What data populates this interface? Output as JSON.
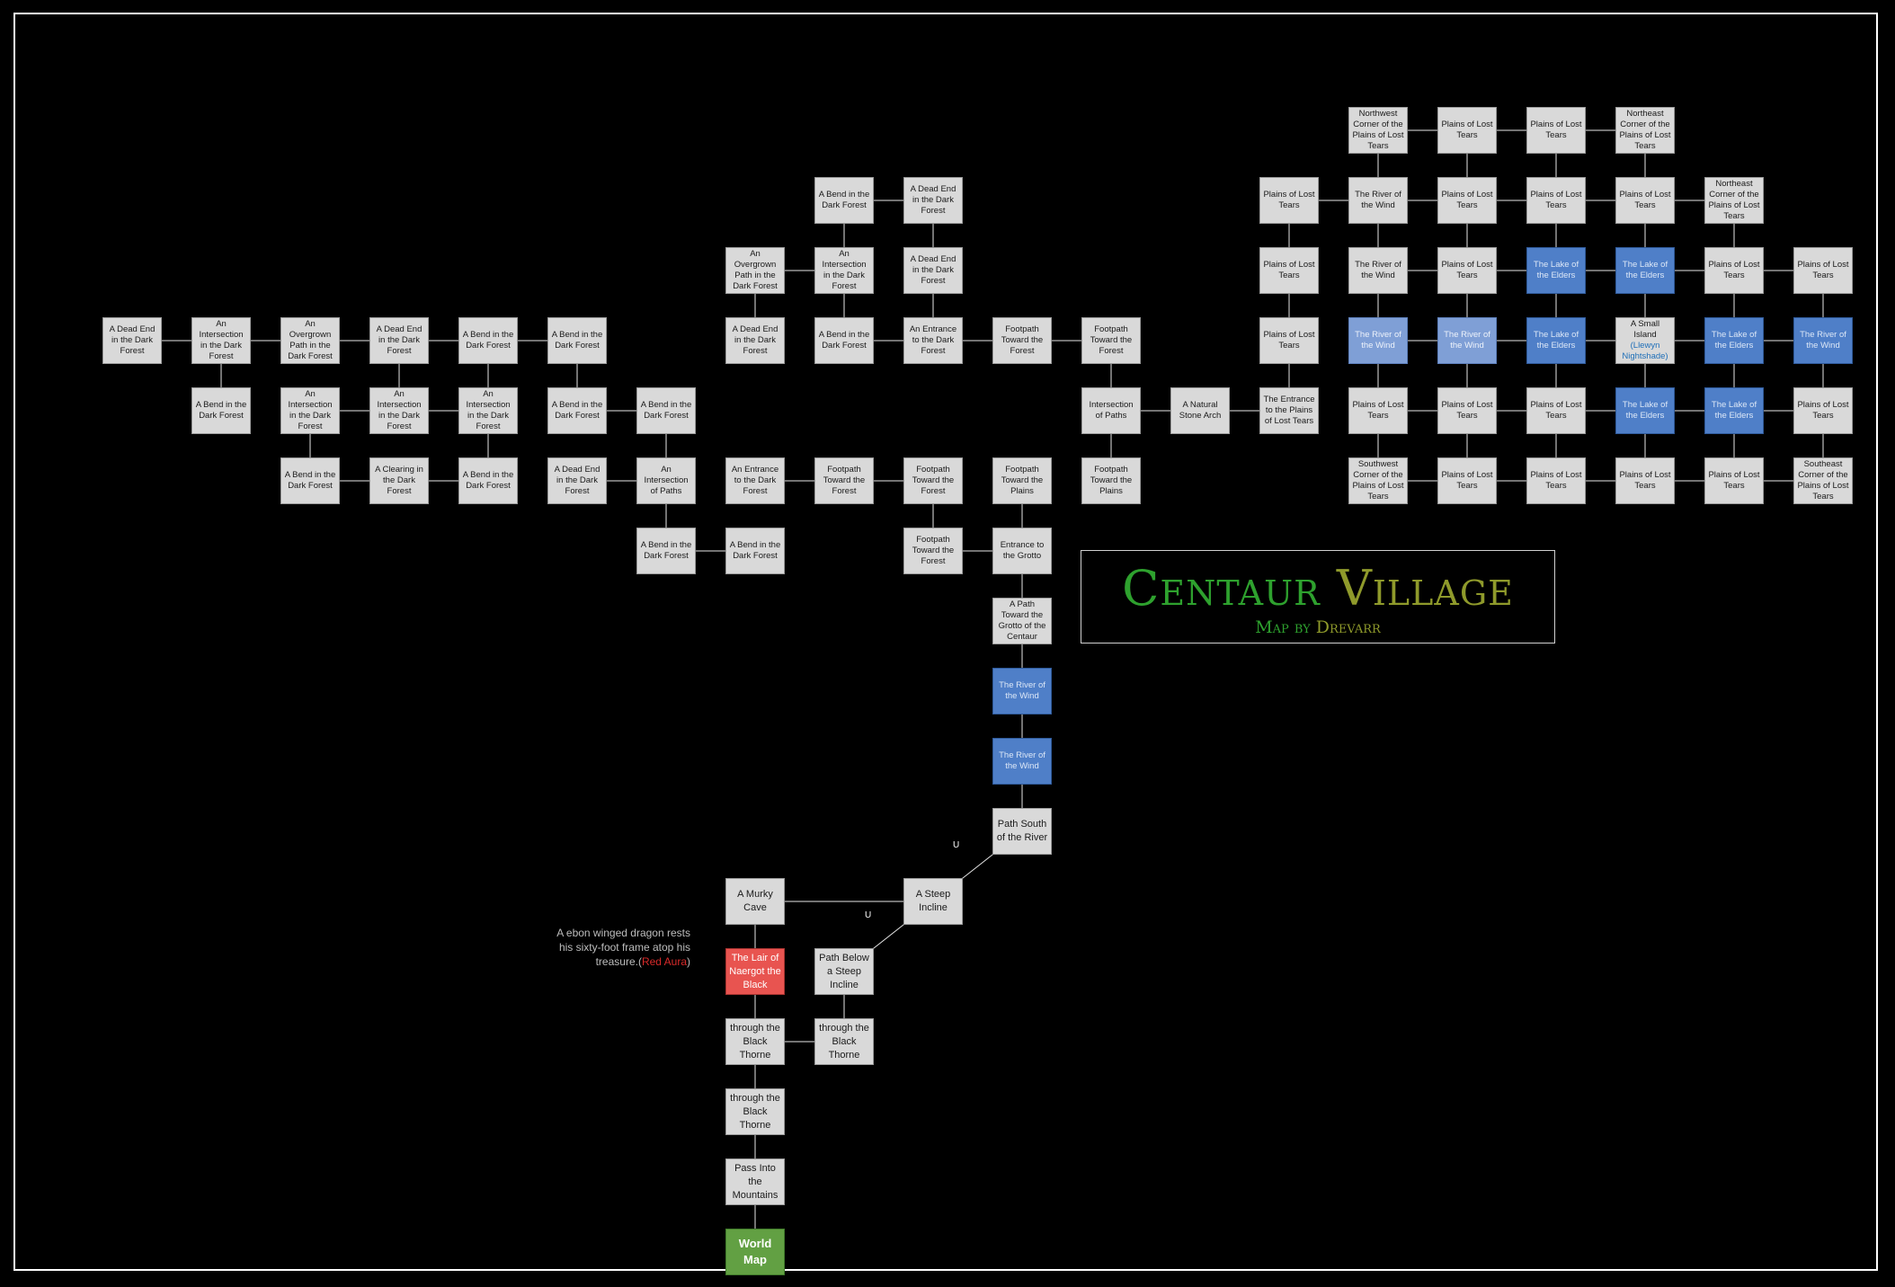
{
  "title": {
    "main_word1": "Centaur",
    "main_word2": "Village",
    "sub_word1": "Map by",
    "sub_word2": "Drevarr"
  },
  "note": {
    "text": "A ebon winged dragon rests his sixty-foot frame atop his treasure.",
    "open": "(",
    "aura": "Red Aura",
    "close": ")"
  },
  "up_label": "U",
  "colors": {
    "room": "#d9d9d9",
    "water": "#4f7fc8",
    "water_light": "#7f9fd6",
    "lair": "#e85450",
    "exit": "#62a043",
    "title_green": "#2ea12e",
    "title_olive": "#8f9a2b"
  },
  "rooms": [
    {
      "id": "A1",
      "label": "A Dead End in the Dark Forest"
    },
    {
      "id": "A2",
      "label": "An Intersection in the Dark Forest"
    },
    {
      "id": "A3",
      "label": "An Overgrown Path in the Dark Forest"
    },
    {
      "id": "A4",
      "label": "A Dead End in the Dark Forest"
    },
    {
      "id": "A5",
      "label": "A Bend in the Dark Forest"
    },
    {
      "id": "A6",
      "label": "A Bend in the Dark Forest"
    },
    {
      "id": "B2",
      "label": "A Bend in the Dark Forest"
    },
    {
      "id": "B3",
      "label": "An Intersection in the Dark Forest"
    },
    {
      "id": "B4",
      "label": "An Intersection in the Dark Forest"
    },
    {
      "id": "B5",
      "label": "An Intersection in the Dark Forest"
    },
    {
      "id": "B6",
      "label": "A Bend in the Dark Forest"
    },
    {
      "id": "B7",
      "label": "A Bend in the Dark Forest"
    },
    {
      "id": "C3",
      "label": "A Bend in the Dark Forest"
    },
    {
      "id": "C4",
      "label": "A Clearing in the Dark Forest"
    },
    {
      "id": "C5",
      "label": "A Bend in the Dark Forest"
    },
    {
      "id": "C6",
      "label": "A Dead End in the Dark Forest"
    },
    {
      "id": "C7",
      "label": "An Intersection of Paths"
    },
    {
      "id": "C8",
      "label": "An Entrance to the Dark Forest"
    },
    {
      "id": "C9",
      "label": "Footpath Toward the Forest"
    },
    {
      "id": "C10",
      "label": "Footpath Toward the Forest"
    },
    {
      "id": "C11",
      "label": "Footpath Toward the Plains"
    },
    {
      "id": "C12",
      "label": "Footpath Toward the Plains"
    },
    {
      "id": "D7",
      "label": "A Bend in the Dark Forest"
    },
    {
      "id": "D8",
      "label": "A Bend in the Dark Forest"
    },
    {
      "id": "D10",
      "label": "Footpath Toward the Forest"
    },
    {
      "id": "D11",
      "label": "Entrance to the Grotto"
    },
    {
      "id": "F1",
      "label": "A Bend in the Dark Forest"
    },
    {
      "id": "F2",
      "label": "A Dead End in the Dark Forest"
    },
    {
      "id": "F3",
      "label": "An Overgrown Path in the Dark Forest"
    },
    {
      "id": "F4",
      "label": "An Intersection in the Dark Forest"
    },
    {
      "id": "F5",
      "label": "A Dead End in the Dark Forest"
    },
    {
      "id": "F6",
      "label": "A Dead End in the Dark Forest"
    },
    {
      "id": "F7",
      "label": "A Bend in the Dark Forest"
    },
    {
      "id": "F8",
      "label": "An Entrance to the Dark Forest"
    },
    {
      "id": "F9",
      "label": "Footpath Toward the Forest"
    },
    {
      "id": "F10",
      "label": "Footpath Toward the Forest"
    },
    {
      "id": "F11",
      "label": "Intersection of Paths"
    },
    {
      "id": "F12",
      "label": "A Natural Stone Arch"
    },
    {
      "id": "F13",
      "label": "The Entrance to the Plains of Lost Tears"
    },
    {
      "id": "P1",
      "label": "Northwest Corner of the Plains of Lost Tears"
    },
    {
      "id": "P2",
      "label": "Plains of Lost Tears"
    },
    {
      "id": "P3",
      "label": "Plains of Lost Tears"
    },
    {
      "id": "P4",
      "label": "Northeast Corner of the Plains of Lost Tears"
    },
    {
      "id": "P5",
      "label": "Plains of Lost Tears"
    },
    {
      "id": "P6",
      "label": "The River of the Wind"
    },
    {
      "id": "P7",
      "label": "Plains of Lost Tears"
    },
    {
      "id": "P8",
      "label": "Plains of Lost Tears"
    },
    {
      "id": "P9",
      "label": "Plains of Lost Tears"
    },
    {
      "id": "P10",
      "label": "Northeast Corner of the Plains of Lost Tears"
    },
    {
      "id": "P11",
      "label": "Plains of Lost Tears"
    },
    {
      "id": "P12",
      "label": "The River of the Wind"
    },
    {
      "id": "P13",
      "label": "Plains of Lost Tears"
    },
    {
      "id": "P14",
      "label": "The Lake of the Elders",
      "kind": "water"
    },
    {
      "id": "P15",
      "label": "The Lake of the Elders",
      "kind": "water"
    },
    {
      "id": "P16",
      "label": "Plains of Lost Tears"
    },
    {
      "id": "P17",
      "label": "Plains of Lost Tears"
    },
    {
      "id": "P18",
      "label": "Plains of Lost Tears"
    },
    {
      "id": "P19",
      "label": "The River of the Wind",
      "kind": "water-light"
    },
    {
      "id": "P20",
      "label": "The River of the Wind",
      "kind": "water-light"
    },
    {
      "id": "P21",
      "label": "The Lake of the Elders",
      "kind": "water"
    },
    {
      "id": "P22",
      "label": "A Small Island",
      "sub": "(Llewyn Nightshade)"
    },
    {
      "id": "P23",
      "label": "The Lake of the Elders",
      "kind": "water"
    },
    {
      "id": "P24",
      "label": "The River of the Wind",
      "kind": "water"
    },
    {
      "id": "P25",
      "label": "Plains of Lost Tears"
    },
    {
      "id": "P26",
      "label": "Plains of Lost Tears"
    },
    {
      "id": "P27",
      "label": "Plains of Lost Tears"
    },
    {
      "id": "P28",
      "label": "The Lake of the Elders",
      "kind": "water"
    },
    {
      "id": "P29",
      "label": "The Lake of the Elders",
      "kind": "water"
    },
    {
      "id": "P30",
      "label": "Plains of Lost Tears"
    },
    {
      "id": "P31",
      "label": "Southwest Corner of the Plains of Lost Tears"
    },
    {
      "id": "P32",
      "label": "Plains of Lost Tears"
    },
    {
      "id": "P33",
      "label": "Plains of Lost Tears"
    },
    {
      "id": "P34",
      "label": "Plains of Lost Tears"
    },
    {
      "id": "P35",
      "label": "Plains of Lost Tears"
    },
    {
      "id": "P36",
      "label": "Southeast Corner of the Plains of Lost Tears"
    },
    {
      "id": "G1",
      "label": "A Path Toward the Grotto of the Centaur"
    },
    {
      "id": "G2",
      "label": "The River of the Wind",
      "kind": "water"
    },
    {
      "id": "G3",
      "label": "The River of the Wind",
      "kind": "water"
    },
    {
      "id": "G4",
      "label": "Path South of the River",
      "big": true
    },
    {
      "id": "G5",
      "label": "A Steep Incline",
      "big": true
    },
    {
      "id": "G6",
      "label": "A Murky Cave",
      "big": true
    },
    {
      "id": "G7",
      "label": "The Lair of Naergot the Black",
      "kind": "lair",
      "big": true
    },
    {
      "id": "G8",
      "label": "Path Below a Steep Incline",
      "big": true
    },
    {
      "id": "G9",
      "label": "Pass through the Black Thorne Mountains",
      "big": true
    },
    {
      "id": "G10",
      "label": "Pass through the Black Thorne Mountains",
      "big": true
    },
    {
      "id": "G11",
      "label": "Pass through the Black Thorne Mountains",
      "big": true
    },
    {
      "id": "G12",
      "label": "Pass Into the Mountains",
      "big": true
    },
    {
      "id": "G13",
      "label": "World Map",
      "kind": "exit"
    }
  ]
}
